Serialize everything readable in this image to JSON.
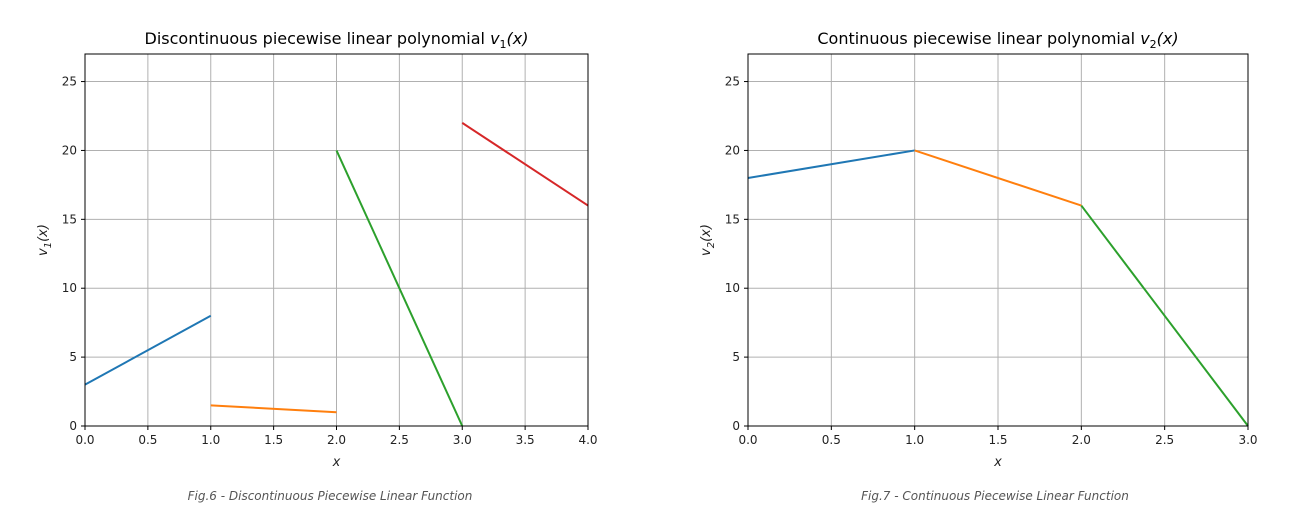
{
  "chart_data": [
    {
      "type": "line",
      "title": "Discontinuous piecewise linear polynomial v1(x)",
      "title_parts": {
        "text": "Discontinuous piecewise linear polynomial ",
        "var": "v",
        "sub": "1",
        "arg": "(x)"
      },
      "xlabel": "x",
      "ylabel": {
        "var": "v",
        "sub": "1",
        "arg": "(x)"
      },
      "xlim": [
        0.0,
        4.0
      ],
      "ylim": [
        0,
        27
      ],
      "xticks": [
        "0.0",
        "0.5",
        "1.0",
        "1.5",
        "2.0",
        "2.5",
        "3.0",
        "3.5",
        "4.0"
      ],
      "xtick_values": [
        0.0,
        0.5,
        1.0,
        1.5,
        2.0,
        2.5,
        3.0,
        3.5,
        4.0
      ],
      "yticks": [
        "0",
        "5",
        "10",
        "15",
        "20",
        "25"
      ],
      "ytick_values": [
        0,
        5,
        10,
        15,
        20,
        25
      ],
      "grid": true,
      "caption": "Fig.6 - Discontinuous Piecewise Linear Function",
      "series": [
        {
          "color": "#1f77b4",
          "x": [
            0.0,
            1.0
          ],
          "y": [
            3.0,
            8.0
          ]
        },
        {
          "color": "#ff7f0e",
          "x": [
            1.0,
            2.0
          ],
          "y": [
            1.5,
            1.0
          ]
        },
        {
          "color": "#2ca02c",
          "x": [
            2.0,
            3.0
          ],
          "y": [
            20.0,
            0.0
          ]
        },
        {
          "color": "#d62728",
          "x": [
            3.0,
            4.0
          ],
          "y": [
            22.0,
            16.0
          ]
        }
      ]
    },
    {
      "type": "line",
      "title": "Continuous piecewise linear polynomial v2(x)",
      "title_parts": {
        "text": "Continuous piecewise linear polynomial ",
        "var": "v",
        "sub": "2",
        "arg": "(x)"
      },
      "xlabel": "x",
      "ylabel": {
        "var": "v",
        "sub": "2",
        "arg": "(x)"
      },
      "xlim": [
        0.0,
        3.0
      ],
      "ylim": [
        0,
        27
      ],
      "xticks": [
        "0.0",
        "0.5",
        "1.0",
        "1.5",
        "2.0",
        "2.5",
        "3.0"
      ],
      "xtick_values": [
        0.0,
        0.5,
        1.0,
        1.5,
        2.0,
        2.5,
        3.0
      ],
      "yticks": [
        "0",
        "5",
        "10",
        "15",
        "20",
        "25"
      ],
      "ytick_values": [
        0,
        5,
        10,
        15,
        20,
        25
      ],
      "grid": true,
      "caption": "Fig.7 - Continuous Piecewise Linear Function",
      "series": [
        {
          "color": "#1f77b4",
          "x": [
            0.0,
            1.0
          ],
          "y": [
            18.0,
            20.0
          ]
        },
        {
          "color": "#ff7f0e",
          "x": [
            1.0,
            2.0
          ],
          "y": [
            20.0,
            16.0
          ]
        },
        {
          "color": "#2ca02c",
          "x": [
            2.0,
            3.0
          ],
          "y": [
            16.0,
            0.0
          ]
        }
      ]
    }
  ]
}
